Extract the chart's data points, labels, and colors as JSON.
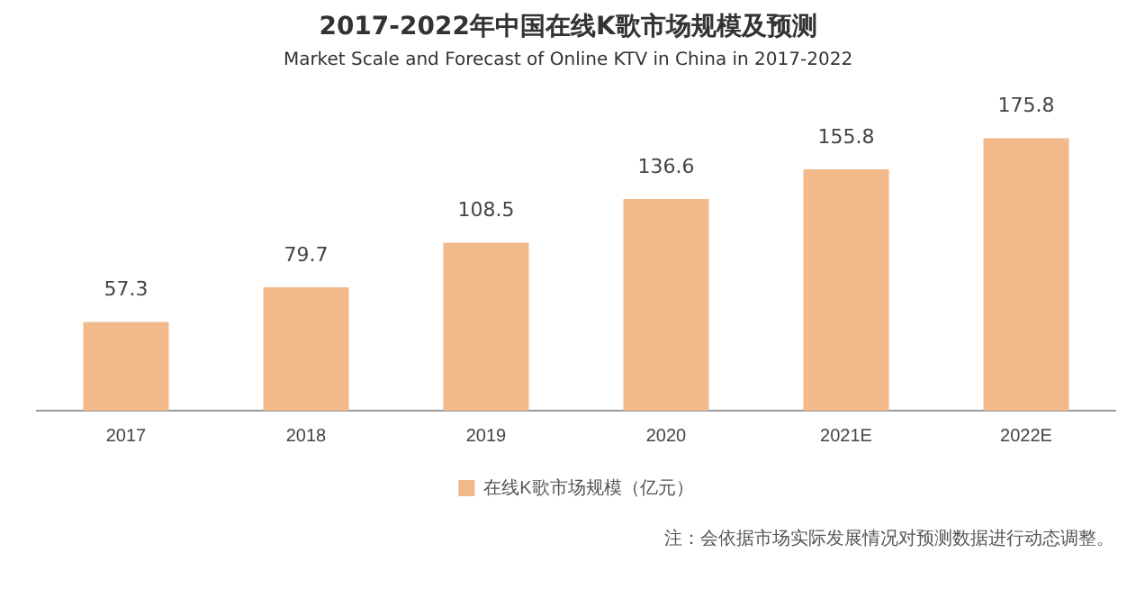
{
  "chart_data": {
    "type": "bar",
    "title": "2017-2022年中国在线K歌市场规模及预测",
    "subtitle": "Market Scale and Forecast of Online KTV in China in 2017-2022",
    "categories": [
      "2017",
      "2018",
      "2019",
      "2020",
      "2021E",
      "2022E"
    ],
    "series": [
      {
        "name": "在线K歌市场规模（亿元）",
        "color": "#f2b98a",
        "values": [
          57.3,
          79.7,
          108.5,
          136.6,
          155.8,
          175.8
        ]
      }
    ],
    "data_labels": true,
    "grid": false,
    "legend": "bottom",
    "annotations": [
      "注：会依据市场实际发展情况对预测数据进行动态调整。"
    ]
  }
}
